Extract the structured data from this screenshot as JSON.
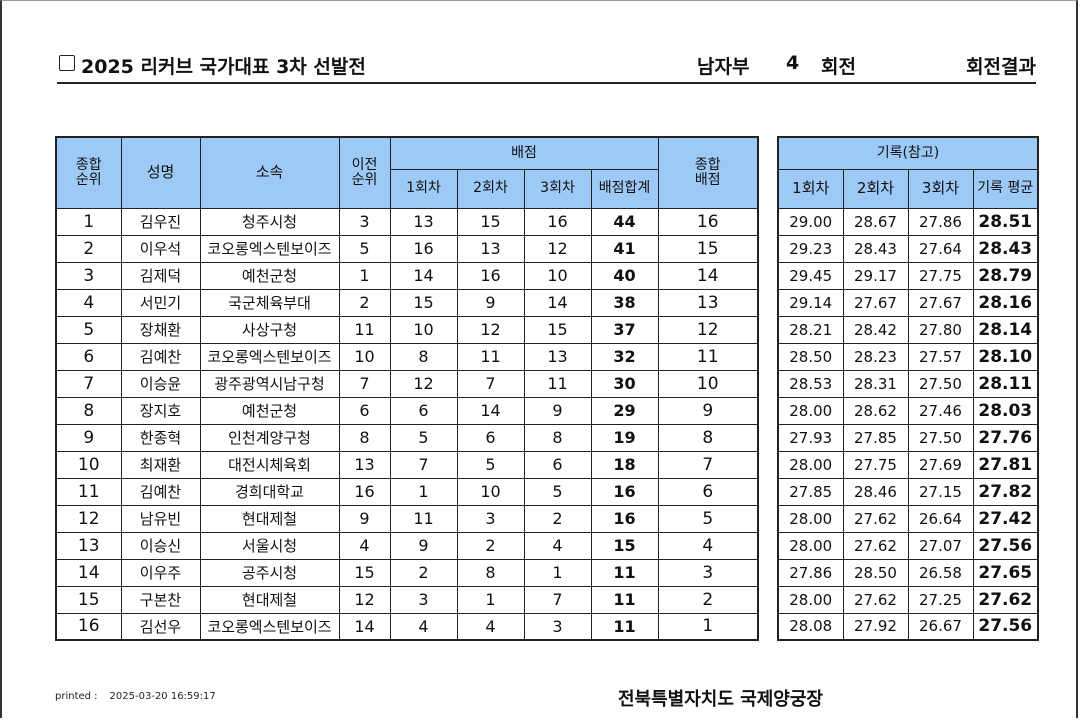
{
  "header": {
    "title": "2025 리커브 국가대표 3차 선발전",
    "division": "남자부",
    "round_no": "4",
    "round_label": "회전",
    "right_title": "회전결과"
  },
  "main_table": {
    "headers": {
      "overall_rank": "종합\n순위",
      "name": "성명",
      "team": "소속",
      "prev_rank": "이전\n순위",
      "points_group": "배점",
      "end1": "1회차",
      "end2": "2회차",
      "end3": "3회차",
      "points_sum": "배점합계",
      "total_points": "종합\n배점"
    },
    "rows": [
      {
        "rank": "1",
        "name": "김우진",
        "team": "청주시청",
        "prev": "3",
        "e1": "13",
        "e2": "15",
        "e3": "16",
        "sum": "44",
        "total": "16"
      },
      {
        "rank": "2",
        "name": "이우석",
        "team": "코오롱엑스텐보이즈",
        "prev": "5",
        "e1": "16",
        "e2": "13",
        "e3": "12",
        "sum": "41",
        "total": "15"
      },
      {
        "rank": "3",
        "name": "김제덕",
        "team": "예천군청",
        "prev": "1",
        "e1": "14",
        "e2": "16",
        "e3": "10",
        "sum": "40",
        "total": "14"
      },
      {
        "rank": "4",
        "name": "서민기",
        "team": "국군체육부대",
        "prev": "2",
        "e1": "15",
        "e2": "9",
        "e3": "14",
        "sum": "38",
        "total": "13"
      },
      {
        "rank": "5",
        "name": "장채환",
        "team": "사상구청",
        "prev": "11",
        "e1": "10",
        "e2": "12",
        "e3": "15",
        "sum": "37",
        "total": "12"
      },
      {
        "rank": "6",
        "name": "김예찬",
        "team": "코오롱엑스텐보이즈",
        "prev": "10",
        "e1": "8",
        "e2": "11",
        "e3": "13",
        "sum": "32",
        "total": "11"
      },
      {
        "rank": "7",
        "name": "이승윤",
        "team": "광주광역시남구청",
        "prev": "7",
        "e1": "12",
        "e2": "7",
        "e3": "11",
        "sum": "30",
        "total": "10"
      },
      {
        "rank": "8",
        "name": "장지호",
        "team": "예천군청",
        "prev": "6",
        "e1": "6",
        "e2": "14",
        "e3": "9",
        "sum": "29",
        "total": "9"
      },
      {
        "rank": "9",
        "name": "한종혁",
        "team": "인천계양구청",
        "prev": "8",
        "e1": "5",
        "e2": "6",
        "e3": "8",
        "sum": "19",
        "total": "8"
      },
      {
        "rank": "10",
        "name": "최재환",
        "team": "대전시체육회",
        "prev": "13",
        "e1": "7",
        "e2": "5",
        "e3": "6",
        "sum": "18",
        "total": "7"
      },
      {
        "rank": "11",
        "name": "김예찬",
        "team": "경희대학교",
        "prev": "16",
        "e1": "1",
        "e2": "10",
        "e3": "5",
        "sum": "16",
        "total": "6"
      },
      {
        "rank": "12",
        "name": "남유빈",
        "team": "현대제철",
        "prev": "9",
        "e1": "11",
        "e2": "3",
        "e3": "2",
        "sum": "16",
        "total": "5"
      },
      {
        "rank": "13",
        "name": "이승신",
        "team": "서울시청",
        "prev": "4",
        "e1": "9",
        "e2": "2",
        "e3": "4",
        "sum": "15",
        "total": "4"
      },
      {
        "rank": "14",
        "name": "이우주",
        "team": "공주시청",
        "prev": "15",
        "e1": "2",
        "e2": "8",
        "e3": "1",
        "sum": "11",
        "total": "3"
      },
      {
        "rank": "15",
        "name": "구본찬",
        "team": "현대제철",
        "prev": "12",
        "e1": "3",
        "e2": "1",
        "e3": "7",
        "sum": "11",
        "total": "2"
      },
      {
        "rank": "16",
        "name": "김선우",
        "team": "코오롱엑스텐보이즈",
        "prev": "14",
        "e1": "4",
        "e2": "4",
        "e3": "3",
        "sum": "11",
        "total": "1"
      }
    ]
  },
  "record_table": {
    "headers": {
      "group": "기록(참고)",
      "end1": "1회차",
      "end2": "2회차",
      "end3": "3회차",
      "avg": "기록 평균"
    },
    "rows": [
      {
        "r1": "29.00",
        "r2": "28.67",
        "r3": "27.86",
        "avg": "28.51"
      },
      {
        "r1": "29.23",
        "r2": "28.43",
        "r3": "27.64",
        "avg": "28.43"
      },
      {
        "r1": "29.45",
        "r2": "29.17",
        "r3": "27.75",
        "avg": "28.79"
      },
      {
        "r1": "29.14",
        "r2": "27.67",
        "r3": "27.67",
        "avg": "28.16"
      },
      {
        "r1": "28.21",
        "r2": "28.42",
        "r3": "27.80",
        "avg": "28.14"
      },
      {
        "r1": "28.50",
        "r2": "28.23",
        "r3": "27.57",
        "avg": "28.10"
      },
      {
        "r1": "28.53",
        "r2": "28.31",
        "r3": "27.50",
        "avg": "28.11"
      },
      {
        "r1": "28.00",
        "r2": "28.62",
        "r3": "27.46",
        "avg": "28.03"
      },
      {
        "r1": "27.93",
        "r2": "27.85",
        "r3": "27.50",
        "avg": "27.76"
      },
      {
        "r1": "28.00",
        "r2": "27.75",
        "r3": "27.69",
        "avg": "27.81"
      },
      {
        "r1": "27.85",
        "r2": "28.46",
        "r3": "27.15",
        "avg": "27.82"
      },
      {
        "r1": "28.00",
        "r2": "27.62",
        "r3": "26.64",
        "avg": "27.42"
      },
      {
        "r1": "28.00",
        "r2": "27.62",
        "r3": "27.07",
        "avg": "27.56"
      },
      {
        "r1": "27.86",
        "r2": "28.50",
        "r3": "26.58",
        "avg": "27.65"
      },
      {
        "r1": "28.00",
        "r2": "27.62",
        "r3": "27.25",
        "avg": "27.62"
      },
      {
        "r1": "28.08",
        "r2": "27.92",
        "r3": "26.67",
        "avg": "27.56"
      }
    ]
  },
  "footer": {
    "printed_label": "printed :",
    "printed_time": "2025-03-20 16:59:17",
    "venue": "전북특별자치도 국제양궁장"
  }
}
